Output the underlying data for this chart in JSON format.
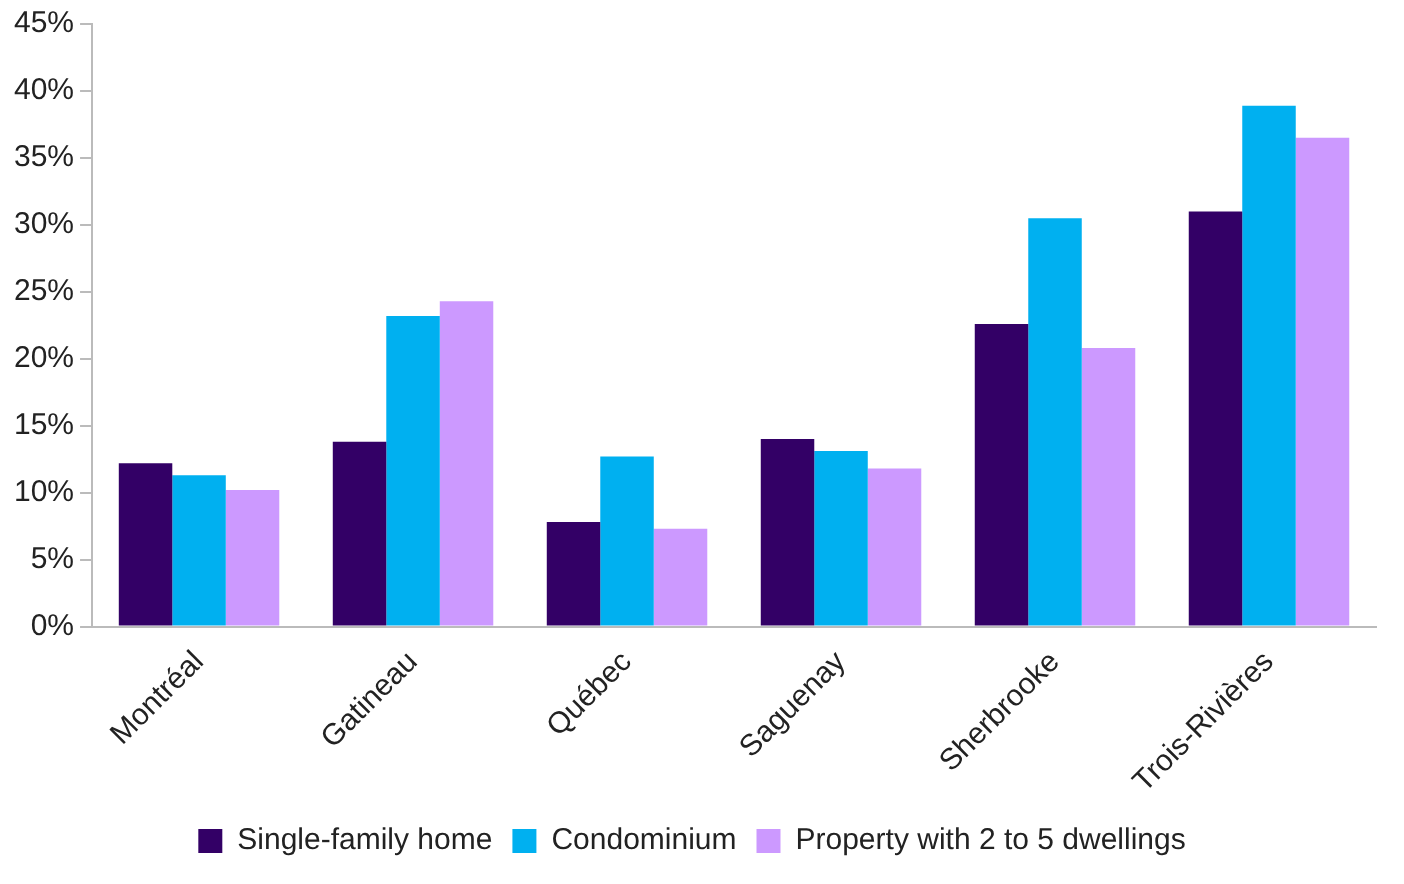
{
  "chart_data": {
    "type": "bar",
    "categories": [
      "Montréal",
      "Gatineau",
      "Québec",
      "Saguenay",
      "Sherbrooke",
      "Trois-Rivières"
    ],
    "series": [
      {
        "name": "Single-family home",
        "color": "#330066",
        "values": [
          12.2,
          13.8,
          7.8,
          14.0,
          22.6,
          31.0
        ]
      },
      {
        "name": "Condominium",
        "color": "#00b0f0",
        "values": [
          11.3,
          23.2,
          12.7,
          13.1,
          30.5,
          38.9
        ]
      },
      {
        "name": "Property with 2 to 5 dwellings",
        "color": "#cc99ff",
        "values": [
          10.2,
          24.3,
          7.3,
          11.8,
          20.8,
          36.5
        ]
      }
    ],
    "ylim": [
      0,
      45
    ],
    "yticks": [
      {
        "value": 0,
        "label": "0%"
      },
      {
        "value": 5,
        "label": "5%"
      },
      {
        "value": 10,
        "label": "10%"
      },
      {
        "value": 15,
        "label": "15%"
      },
      {
        "value": 20,
        "label": "20%"
      },
      {
        "value": 25,
        "label": "25%"
      },
      {
        "value": 30,
        "label": "30%"
      },
      {
        "value": 35,
        "label": "35%"
      },
      {
        "value": 40,
        "label": "40%"
      },
      {
        "value": 45,
        "label": "45%"
      }
    ],
    "grid": false,
    "legend": "bottom"
  }
}
